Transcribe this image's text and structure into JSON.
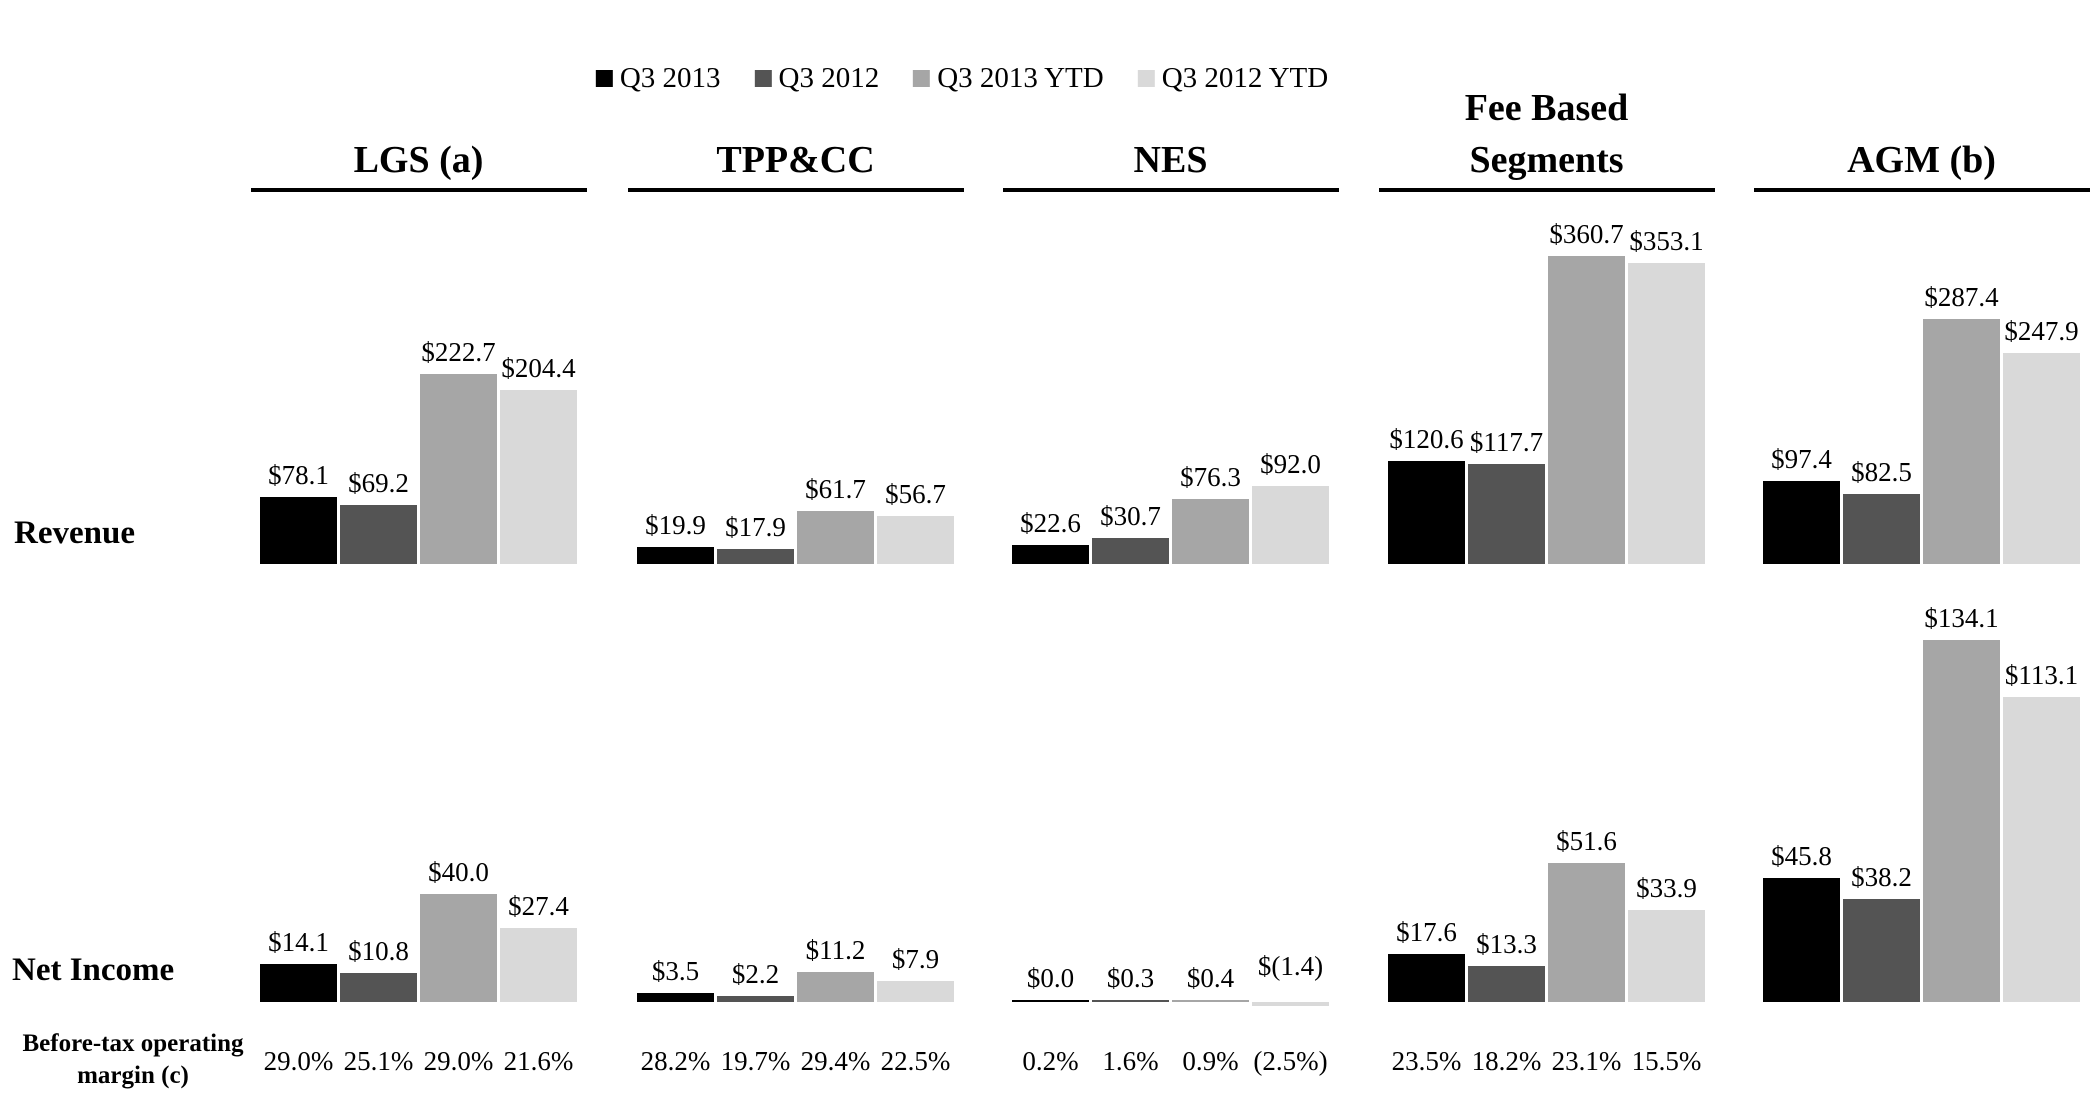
{
  "chart_data": {
    "type": "bar",
    "legend_position": "top",
    "grid": false,
    "series": [
      "Q3 2013",
      "Q3 2012",
      "Q3 2013 YTD",
      "Q3 2012 YTD"
    ],
    "series_colors": [
      "#000000",
      "#545454",
      "#a6a6a6",
      "#d9d9d9"
    ],
    "row_labels": {
      "revenue": "Revenue",
      "net_income": "Net Income",
      "margin_line1": "Before-tax operating",
      "margin_line2": "margin (c)"
    },
    "groups": [
      {
        "name_lines": [
          "LGS (a)"
        ],
        "revenue": {
          "values": [
            78.1,
            69.2,
            222.7,
            204.4
          ],
          "labels": [
            "$78.1",
            "$69.2",
            "$222.7",
            "$204.4"
          ]
        },
        "net_income": {
          "values": [
            14.1,
            10.8,
            40.0,
            27.4
          ],
          "labels": [
            "$14.1",
            "$10.8",
            "$40.0",
            "$27.4"
          ]
        },
        "margin": [
          "29.0%",
          "25.1%",
          "29.0%",
          "21.6%"
        ]
      },
      {
        "name_lines": [
          "TPP&CC"
        ],
        "revenue": {
          "values": [
            19.9,
            17.9,
            61.7,
            56.7
          ],
          "labels": [
            "$19.9",
            "$17.9",
            "$61.7",
            "$56.7"
          ]
        },
        "net_income": {
          "values": [
            3.5,
            2.2,
            11.2,
            7.9
          ],
          "labels": [
            "$3.5",
            "$2.2",
            "$11.2",
            "$7.9"
          ]
        },
        "margin": [
          "28.2%",
          "19.7%",
          "29.4%",
          "22.5%"
        ]
      },
      {
        "name_lines": [
          "NES"
        ],
        "revenue": {
          "values": [
            22.6,
            30.7,
            76.3,
            92.0
          ],
          "labels": [
            "$22.6",
            "$30.7",
            "$76.3",
            "$92.0"
          ]
        },
        "net_income": {
          "values": [
            0.0,
            0.3,
            0.4,
            -1.4
          ],
          "labels": [
            "$0.0",
            "$0.3",
            "$0.4",
            "$(1.4)"
          ]
        },
        "margin": [
          "0.2%",
          "1.6%",
          "0.9%",
          "(2.5%)"
        ]
      },
      {
        "name_lines": [
          "Fee Based",
          "Segments"
        ],
        "revenue": {
          "values": [
            120.6,
            117.7,
            360.7,
            353.1
          ],
          "labels": [
            "$120.6",
            "$117.7",
            "$360.7",
            "$353.1"
          ]
        },
        "net_income": {
          "values": [
            17.6,
            13.3,
            51.6,
            33.9
          ],
          "labels": [
            "$17.6",
            "$13.3",
            "$51.6",
            "$33.9"
          ]
        },
        "margin": [
          "23.5%",
          "18.2%",
          "23.1%",
          "15.5%"
        ]
      },
      {
        "name_lines": [
          "AGM (b)"
        ],
        "revenue": {
          "values": [
            97.4,
            82.5,
            287.4,
            247.9
          ],
          "labels": [
            "$97.4",
            "$82.5",
            "$287.4",
            "$247.9"
          ]
        },
        "net_income": {
          "values": [
            45.8,
            38.2,
            134.1,
            113.1
          ],
          "labels": [
            "$45.8",
            "$38.2",
            "$134.1",
            "$113.1"
          ]
        },
        "margin": []
      }
    ],
    "value_units_prefix": "$",
    "revenue_axis_implied_max": 360.7,
    "net_income_axis_implied_max": 134.1
  }
}
